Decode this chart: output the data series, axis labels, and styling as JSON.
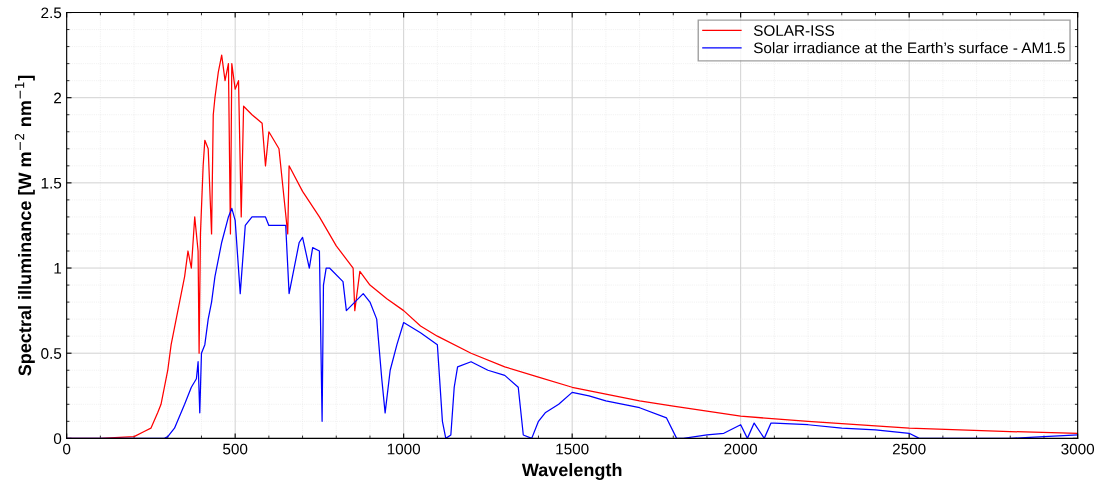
{
  "chart_data": {
    "type": "line",
    "xlabel": "Wavelength",
    "ylabel": "Spectral illuminance [W m$^{−2}$ nm$^{−1}$]",
    "xlim": [
      0,
      3000
    ],
    "ylim": [
      0,
      2.5
    ],
    "xticks": [
      0,
      500,
      1000,
      1500,
      2000,
      2500,
      3000
    ],
    "yticks": [
      0,
      0.5,
      1,
      1.5,
      2,
      2.5
    ],
    "grid": true,
    "legend": "top right",
    "line_style": "solid",
    "marker": "none",
    "series": [
      {
        "name": "SOLAR-ISS",
        "color": "#ff0000",
        "x": [
          0,
          100,
          200,
          230,
          250,
          270,
          280,
          300,
          310,
          320,
          335,
          350,
          360,
          370,
          380,
          390,
          393,
          397,
          405,
          410,
          420,
          430,
          435,
          440,
          450,
          460,
          470,
          480,
          486,
          490,
          500,
          510,
          518,
          525,
          550,
          580,
          590,
          600,
          630,
          656,
          660,
          700,
          750,
          800,
          850,
          855,
          870,
          900,
          950,
          1000,
          1050,
          1100,
          1200,
          1300,
          1400,
          1500,
          1600,
          1700,
          1800,
          2000,
          2200,
          2500,
          2800,
          3000
        ],
        "values": [
          0,
          0,
          0.01,
          0.04,
          0.06,
          0.15,
          0.2,
          0.4,
          0.55,
          0.65,
          0.8,
          0.95,
          1.1,
          1.0,
          1.3,
          1.1,
          0.5,
          1.2,
          1.6,
          1.75,
          1.7,
          1.2,
          1.9,
          2.0,
          2.15,
          2.25,
          2.1,
          2.2,
          1.2,
          2.2,
          2.05,
          2.1,
          1.3,
          1.95,
          1.9,
          1.85,
          1.6,
          1.8,
          1.7,
          1.2,
          1.6,
          1.45,
          1.3,
          1.13,
          1.0,
          0.75,
          0.98,
          0.9,
          0.82,
          0.75,
          0.66,
          0.6,
          0.5,
          0.42,
          0.36,
          0.3,
          0.26,
          0.22,
          0.19,
          0.13,
          0.1,
          0.06,
          0.04,
          0.03
        ]
      },
      {
        "name": "Solar irradiance at the Earth’s surface - AM1.5",
        "color": "#0000ff",
        "x": [
          0,
          290,
          300,
          320,
          350,
          370,
          385,
          390,
          395,
          400,
          410,
          420,
          430,
          440,
          460,
          480,
          490,
          500,
          515,
          530,
          550,
          590,
          600,
          650,
          660,
          690,
          700,
          720,
          730,
          750,
          758,
          762,
          770,
          780,
          820,
          830,
          880,
          900,
          920,
          935,
          945,
          960,
          980,
          1000,
          1050,
          1100,
          1115,
          1125,
          1140,
          1150,
          1160,
          1200,
          1250,
          1300,
          1340,
          1355,
          1380,
          1400,
          1420,
          1460,
          1500,
          1550,
          1600,
          1700,
          1780,
          1810,
          1830,
          1900,
          1950,
          2000,
          2020,
          2040,
          2060,
          2070,
          2090,
          2100,
          2200,
          2300,
          2400,
          2500,
          2530,
          2550,
          2800,
          2900,
          3000
        ],
        "values": [
          0,
          0,
          0.01,
          0.06,
          0.2,
          0.3,
          0.35,
          0.45,
          0.15,
          0.5,
          0.55,
          0.7,
          0.8,
          0.95,
          1.15,
          1.3,
          1.35,
          1.28,
          0.85,
          1.25,
          1.3,
          1.3,
          1.25,
          1.25,
          0.85,
          1.15,
          1.18,
          1.0,
          1.12,
          1.1,
          0.1,
          0.9,
          1.0,
          1.0,
          0.92,
          0.75,
          0.85,
          0.8,
          0.7,
          0.35,
          0.15,
          0.4,
          0.55,
          0.68,
          0.62,
          0.55,
          0.1,
          0.0,
          0.02,
          0.3,
          0.42,
          0.45,
          0.4,
          0.37,
          0.3,
          0.02,
          0.0,
          0.1,
          0.15,
          0.2,
          0.27,
          0.25,
          0.22,
          0.18,
          0.12,
          0.0,
          0.0,
          0.02,
          0.03,
          0.08,
          0.0,
          0.09,
          0.03,
          0.0,
          0.09,
          0.09,
          0.08,
          0.06,
          0.05,
          0.03,
          0.0,
          0.0,
          0.0,
          0.01,
          0.02
        ]
      }
    ]
  }
}
